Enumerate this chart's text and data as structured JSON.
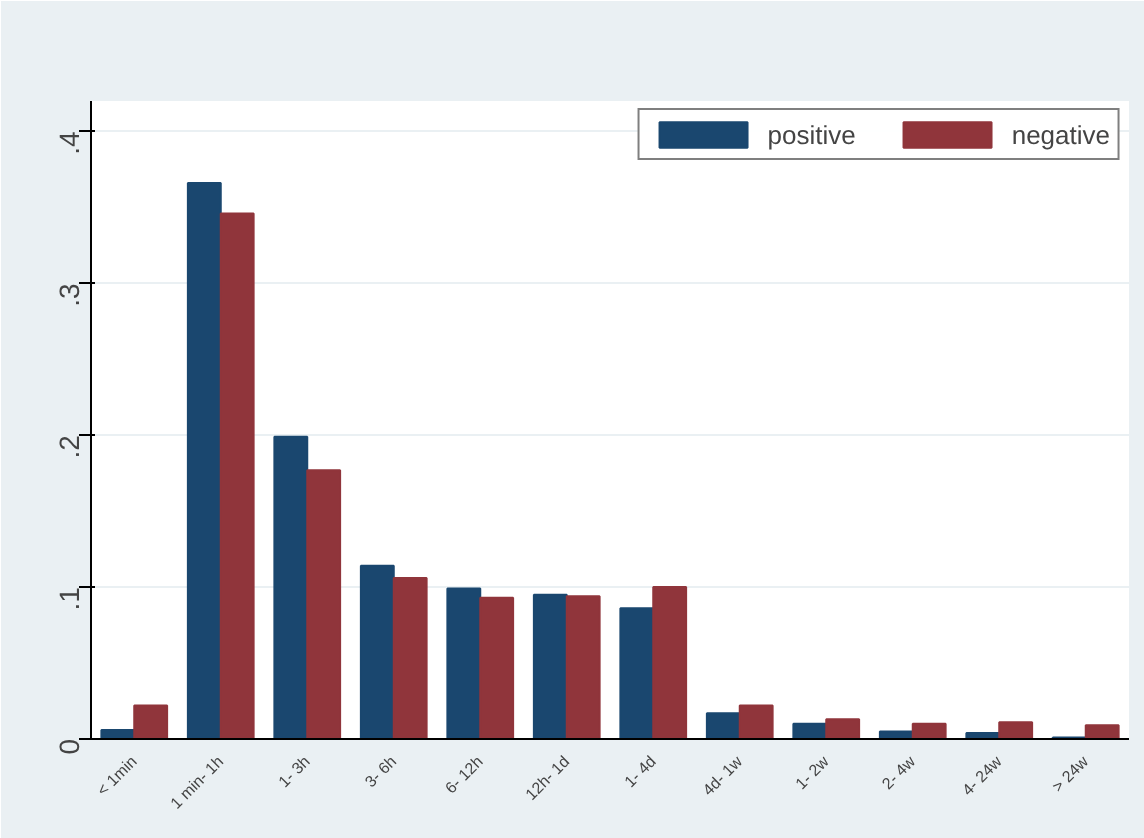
{
  "chart_data": {
    "type": "bar",
    "categories": [
      "< 1min",
      "1 min- 1h",
      "1- 3h",
      "3- 6h",
      "6- 12h",
      "12h- 1d",
      "1- 4d",
      "4d- 1w",
      "1- 2w",
      "2- 4w",
      "4- 24w",
      "> 24w"
    ],
    "series": [
      {
        "name": "positive",
        "color": "#1a476f",
        "values": [
          0.006,
          0.366,
          0.199,
          0.114,
          0.099,
          0.095,
          0.086,
          0.017,
          0.01,
          0.005,
          0.004,
          0.001
        ]
      },
      {
        "name": "negative",
        "color": "#90353b",
        "values": [
          0.022,
          0.346,
          0.177,
          0.106,
          0.093,
          0.094,
          0.1,
          0.022,
          0.013,
          0.01,
          0.011,
          0.009
        ]
      }
    ],
    "ylim": [
      0,
      0.42
    ],
    "yticks": [
      {
        "value": 0,
        "label": "0"
      },
      {
        "value": 0.1,
        "label": ".1"
      },
      {
        "value": 0.2,
        "label": ".2"
      },
      {
        "value": 0.3,
        "label": ".3"
      },
      {
        "value": 0.4,
        "label": ".4"
      }
    ],
    "grid": "y",
    "legend": "top right"
  }
}
